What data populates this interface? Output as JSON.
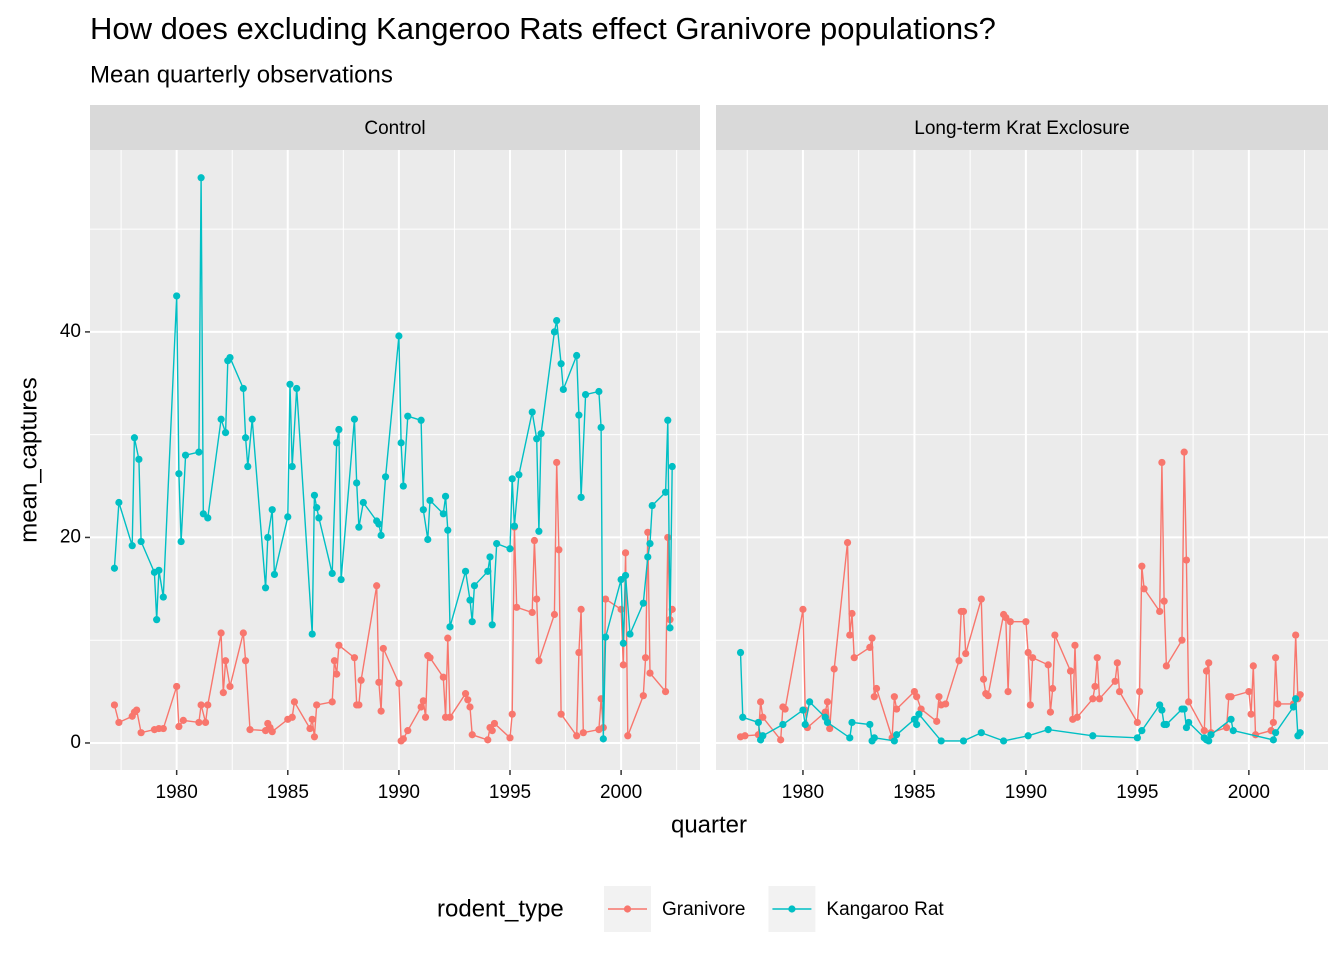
{
  "chart_data": {
    "type": "line",
    "title": "How does excluding Kangeroo Rats effect Granivore populations?",
    "subtitle": "Mean quarterly observations",
    "x_label": "quarter",
    "y_label": "mean_captures",
    "legend_title": "rodent_type",
    "legend_position": "bottom",
    "grid": true,
    "minor_grid": true,
    "xlim": [
      1976.1,
      2003.55
    ],
    "ylim": [
      -2.63,
      57.7
    ],
    "xticks": [
      1980,
      1985,
      1990,
      1995,
      2000
    ],
    "yticks": [
      0,
      20,
      40
    ],
    "series": [
      {
        "name": "Granivore",
        "color": "#F8766D"
      },
      {
        "name": "Kangaroo Rat",
        "color": "#00BFC4"
      }
    ],
    "panels": [
      {
        "title": "Control",
        "series": [
          {
            "x": [
              1977.2,
              1977.4,
              1978.0,
              1978.1,
              1978.2,
              1978.4,
              1979.0,
              1979.2,
              1979.4,
              1980.0,
              1980.1,
              1980.3,
              1981.0,
              1981.1,
              1981.3,
              1981.4,
              1982.0,
              1982.1,
              1982.2,
              1982.4,
              1983.0,
              1983.1,
              1983.3,
              1984.0,
              1984.1,
              1984.2,
              1984.3,
              1985.0,
              1985.2,
              1985.3,
              1986.0,
              1986.1,
              1986.2,
              1986.3,
              1987.0,
              1987.1,
              1987.2,
              1987.3,
              1988.0,
              1988.1,
              1988.2,
              1988.3,
              1989.0,
              1989.1,
              1989.2,
              1989.3,
              1990.0,
              1990.1,
              1990.2,
              1990.4,
              1991.0,
              1991.1,
              1991.2,
              1991.3,
              1991.4,
              1992.0,
              1992.1,
              1992.2,
              1992.3,
              1993.0,
              1993.1,
              1993.2,
              1993.3,
              1994.0,
              1994.1,
              1994.2,
              1994.3,
              1995.0,
              1995.1,
              1995.2,
              1995.3,
              1996.0,
              1996.1,
              1996.2,
              1996.3,
              1997.0,
              1997.1,
              1997.2,
              1997.3,
              1998.0,
              1998.1,
              1998.2,
              1998.3,
              1999.0,
              1999.1,
              1999.2,
              1999.3,
              2000.0,
              2000.1,
              2000.2,
              2000.3,
              2001.0,
              2001.1,
              2001.2,
              2001.3,
              2002.0,
              2002.1,
              2002.2,
              2002.3
            ],
            "values": [
              3.7,
              2.0,
              2.6,
              3.0,
              3.2,
              1.0,
              1.3,
              1.4,
              1.4,
              5.5,
              1.6,
              2.2,
              2.0,
              3.7,
              2.0,
              3.7,
              10.7,
              4.9,
              8.0,
              5.5,
              10.7,
              8.0,
              1.3,
              1.2,
              1.9,
              1.5,
              1.1,
              2.3,
              2.5,
              4.0,
              1.4,
              2.3,
              0.6,
              3.7,
              4.0,
              8.0,
              6.7,
              9.5,
              8.3,
              3.7,
              3.7,
              6.1,
              15.3,
              5.9,
              3.1,
              9.2,
              5.8,
              0.2,
              0.4,
              1.2,
              3.5,
              4.1,
              2.5,
              8.5,
              8.3,
              6.4,
              2.5,
              10.2,
              2.5,
              4.8,
              4.2,
              3.5,
              0.8,
              0.3,
              1.5,
              1.2,
              1.9,
              0.5,
              2.8,
              21.0,
              13.2,
              12.7,
              19.7,
              14.0,
              8.0,
              12.5,
              27.3,
              18.8,
              2.8,
              0.7,
              8.8,
              13.0,
              1.0,
              1.3,
              4.3,
              1.5,
              14.0,
              13.0,
              7.6,
              18.5,
              0.7,
              4.6,
              8.3,
              20.5,
              6.8,
              5.0,
              20.0,
              12.0,
              13.0
            ]
          },
          {
            "x": [
              1977.2,
              1977.4,
              1978.0,
              1978.1,
              1978.3,
              1978.4,
              1979.0,
              1979.1,
              1979.2,
              1979.4,
              1980.0,
              1980.1,
              1980.2,
              1980.4,
              1981.0,
              1981.1,
              1981.2,
              1981.4,
              1982.0,
              1982.2,
              1982.3,
              1982.4,
              1983.0,
              1983.1,
              1983.2,
              1983.4,
              1984.0,
              1984.1,
              1984.3,
              1984.4,
              1985.0,
              1985.1,
              1985.2,
              1985.4,
              1986.1,
              1986.2,
              1986.3,
              1986.4,
              1987.0,
              1987.2,
              1987.3,
              1987.4,
              1988.0,
              1988.1,
              1988.2,
              1988.4,
              1989.0,
              1989.1,
              1989.2,
              1989.4,
              1990.0,
              1990.1,
              1990.2,
              1990.4,
              1991.0,
              1991.1,
              1991.3,
              1991.4,
              1992.0,
              1992.1,
              1992.2,
              1992.3,
              1993.0,
              1993.2,
              1993.3,
              1993.4,
              1994.0,
              1994.1,
              1994.2,
              1994.4,
              1995.0,
              1995.1,
              1995.2,
              1995.4,
              1996.0,
              1996.2,
              1996.3,
              1996.4,
              1997.0,
              1997.1,
              1997.3,
              1997.4,
              1998.0,
              1998.1,
              1998.2,
              1998.4,
              1999.0,
              1999.1,
              1999.2,
              1999.3,
              2000.0,
              2000.1,
              2000.2,
              2000.4,
              2001.0,
              2001.2,
              2001.3,
              2001.4,
              2002.0,
              2002.1,
              2002.2,
              2002.3
            ],
            "values": [
              17.0,
              23.4,
              19.2,
              29.7,
              27.6,
              19.6,
              16.6,
              12.0,
              16.8,
              14.2,
              43.5,
              26.2,
              19.6,
              28.0,
              28.3,
              55.0,
              22.3,
              21.9,
              31.5,
              30.2,
              37.2,
              37.5,
              34.5,
              29.7,
              26.9,
              31.5,
              15.1,
              20.0,
              22.7,
              16.4,
              22.0,
              34.9,
              26.9,
              34.5,
              10.6,
              24.1,
              22.9,
              21.9,
              16.5,
              29.2,
              30.5,
              15.9,
              31.5,
              25.3,
              21.0,
              23.4,
              21.6,
              21.3,
              20.2,
              25.9,
              39.6,
              29.2,
              25.0,
              31.8,
              31.4,
              22.7,
              19.8,
              23.6,
              22.3,
              24.0,
              20.7,
              11.3,
              16.7,
              13.9,
              11.8,
              15.3,
              16.7,
              18.1,
              11.5,
              19.4,
              18.9,
              25.7,
              21.1,
              26.1,
              32.2,
              29.6,
              20.6,
              30.1,
              40.0,
              41.1,
              36.9,
              34.4,
              37.7,
              31.9,
              23.9,
              33.9,
              34.2,
              30.7,
              0.4,
              10.3,
              15.9,
              9.7,
              16.3,
              10.6,
              13.6,
              18.1,
              19.4,
              23.1,
              24.4,
              31.4,
              11.2,
              26.9
            ]
          }
        ]
      },
      {
        "title": "Long-term Krat Exclosure",
        "series": [
          {
            "x": [
              1977.2,
              1977.4,
              1978.0,
              1978.1,
              1978.2,
              1979.0,
              1979.1,
              1979.2,
              1980.0,
              1980.1,
              1980.2,
              1981.0,
              1981.1,
              1981.2,
              1981.4,
              1982.0,
              1982.1,
              1982.2,
              1982.3,
              1983.0,
              1983.1,
              1983.2,
              1983.3,
              1984.0,
              1984.1,
              1984.2,
              1985.0,
              1985.1,
              1985.3,
              1986.0,
              1986.1,
              1986.2,
              1986.4,
              1987.0,
              1987.1,
              1987.2,
              1987.3,
              1988.0,
              1988.1,
              1988.2,
              1988.3,
              1989.0,
              1989.1,
              1989.2,
              1989.3,
              1990.0,
              1990.1,
              1990.2,
              1990.3,
              1991.0,
              1991.1,
              1991.2,
              1991.3,
              1992.0,
              1992.1,
              1992.2,
              1992.3,
              1993.0,
              1993.1,
              1993.2,
              1993.3,
              1994.0,
              1994.1,
              1994.2,
              1995.0,
              1995.1,
              1995.2,
              1995.3,
              1996.0,
              1996.1,
              1996.2,
              1996.3,
              1997.0,
              1997.1,
              1997.2,
              1997.3,
              1998.0,
              1998.1,
              1998.2,
              1998.3,
              1999.0,
              1999.1,
              1999.2,
              2000.0,
              2000.1,
              2000.2,
              2000.3,
              2001.0,
              2001.1,
              2001.2,
              2001.3,
              2002.0,
              2002.1,
              2002.2,
              2002.3
            ],
            "values": [
              0.6,
              0.7,
              0.8,
              4.0,
              2.5,
              0.3,
              3.5,
              3.3,
              13.0,
              3.2,
              1.5,
              3.0,
              4.0,
              1.4,
              7.2,
              19.5,
              10.5,
              12.6,
              8.3,
              9.3,
              10.2,
              4.5,
              5.3,
              0.5,
              4.5,
              3.3,
              5.0,
              4.5,
              3.3,
              2.1,
              4.5,
              3.7,
              3.8,
              8.0,
              12.8,
              12.8,
              8.7,
              14.0,
              6.2,
              4.8,
              4.6,
              12.5,
              12.2,
              5.0,
              11.8,
              11.8,
              8.8,
              3.7,
              8.3,
              7.6,
              3.0,
              5.3,
              10.5,
              7.0,
              2.3,
              9.5,
              2.5,
              4.3,
              5.5,
              8.3,
              4.3,
              6.0,
              7.8,
              5.0,
              2.0,
              5.0,
              17.2,
              15.0,
              12.8,
              27.3,
              13.8,
              7.5,
              10.0,
              28.3,
              17.8,
              4.0,
              1.2,
              7.0,
              7.8,
              1.0,
              1.5,
              4.5,
              4.5,
              5.0,
              2.8,
              7.5,
              0.8,
              1.2,
              2.0,
              8.3,
              3.8,
              3.8,
              10.5,
              4.3,
              4.7
            ]
          },
          {
            "x": [
              1977.2,
              1977.3,
              1978.0,
              1978.1,
              1978.2,
              1979.1,
              1980.0,
              1980.1,
              1980.3,
              1981.0,
              1981.1,
              1982.1,
              1982.2,
              1983.0,
              1983.1,
              1983.2,
              1984.1,
              1984.2,
              1985.0,
              1985.1,
              1985.2,
              1986.2,
              1987.2,
              1988.0,
              1989.0,
              1990.1,
              1991.0,
              1993.0,
              1995.0,
              1995.2,
              1996.0,
              1996.1,
              1996.2,
              1996.3,
              1997.0,
              1997.1,
              1997.2,
              1997.3,
              1998.0,
              1998.1,
              1998.2,
              1998.3,
              1999.2,
              1999.3,
              2001.1,
              2001.2,
              2002.0,
              2002.1,
              2002.2,
              2002.3
            ],
            "values": [
              8.8,
              2.5,
              2.0,
              0.3,
              0.7,
              1.8,
              3.2,
              1.8,
              4.0,
              2.5,
              2.0,
              0.5,
              2.0,
              1.8,
              0.2,
              0.5,
              0.2,
              0.8,
              2.3,
              1.8,
              2.8,
              0.2,
              0.2,
              1.0,
              0.2,
              0.7,
              1.3,
              0.7,
              0.5,
              1.2,
              3.7,
              3.2,
              1.8,
              1.8,
              3.3,
              3.3,
              1.5,
              2.0,
              0.5,
              0.3,
              0.2,
              0.8,
              2.3,
              1.2,
              0.3,
              1.0,
              3.5,
              4.3,
              0.7,
              1.0
            ]
          }
        ]
      }
    ]
  }
}
